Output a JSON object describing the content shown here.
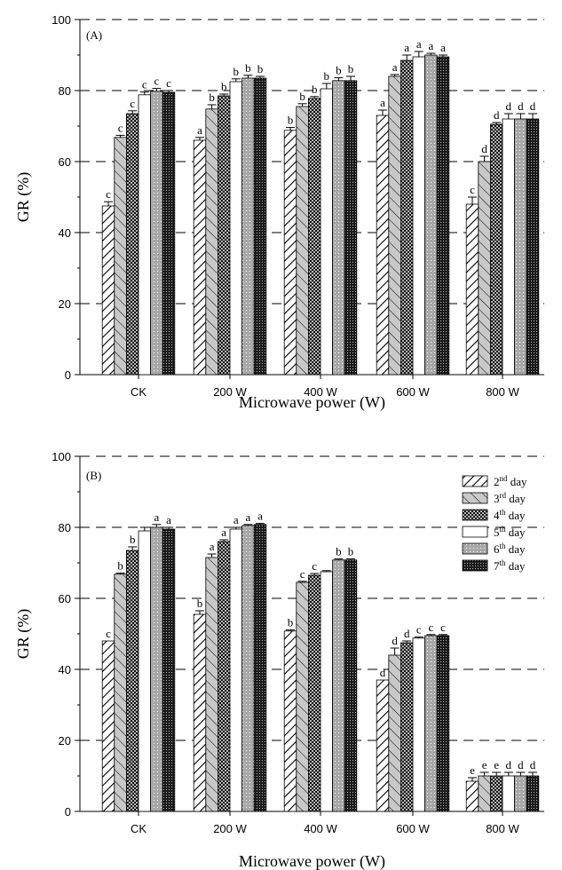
{
  "chart_data": [
    {
      "type": "bar",
      "panel_label": "(A)",
      "xlabel": "Microwave power (W)",
      "ylabel": "GR (%)",
      "ylim": [
        0,
        100
      ],
      "yticks": [
        0,
        20,
        40,
        60,
        80,
        100
      ],
      "grid": "dashed horizontal",
      "categories": [
        "CK",
        "200 W",
        "400 W",
        "600 W",
        "800 W"
      ],
      "series": [
        {
          "name": "2nd day",
          "values": [
            47.5,
            66.0,
            68.8,
            73.0,
            48.0
          ],
          "errors": [
            1.2,
            0.8,
            0.8,
            1.5,
            2.0
          ],
          "labels": [
            "c",
            "a",
            "b",
            "a",
            "c"
          ]
        },
        {
          "name": "3rd day",
          "values": [
            66.8,
            74.8,
            75.5,
            84.0,
            60.0
          ],
          "errors": [
            0.6,
            1.2,
            0.8,
            0.5,
            1.5
          ],
          "labels": [
            "c",
            "b",
            "b",
            "a",
            "d"
          ]
        },
        {
          "name": "4th day",
          "values": [
            73.5,
            78.5,
            77.8,
            88.5,
            70.5
          ],
          "errors": [
            0.8,
            0.5,
            0.5,
            1.5,
            0.5
          ],
          "labels": [
            "c",
            "b",
            "b",
            "a",
            "d"
          ]
        },
        {
          "name": "5th day",
          "values": [
            78.8,
            82.5,
            80.5,
            89.5,
            72.0
          ],
          "errors": [
            0.8,
            0.8,
            1.5,
            1.5,
            1.5
          ],
          "labels": [
            "c",
            "b",
            "b",
            "a",
            "d"
          ]
        },
        {
          "name": "6th day",
          "values": [
            79.8,
            83.5,
            82.8,
            90.0,
            72.0
          ],
          "errors": [
            0.8,
            0.8,
            0.8,
            0.5,
            1.5
          ],
          "labels": [
            "c",
            "b",
            "b",
            "a",
            "d"
          ]
        },
        {
          "name": "7th day",
          "values": [
            79.5,
            83.5,
            82.8,
            89.5,
            72.0
          ],
          "errors": [
            0.5,
            0.5,
            1.2,
            0.5,
            1.5
          ],
          "labels": [
            "c",
            "b",
            "b",
            "a",
            "d"
          ]
        }
      ]
    },
    {
      "type": "bar",
      "panel_label": "(B)",
      "xlabel": "Microwave power (W)",
      "ylabel": "GR (%)",
      "ylim": [
        0,
        100
      ],
      "yticks": [
        0,
        20,
        40,
        60,
        80,
        100
      ],
      "grid": "dashed horizontal",
      "legend_position": "top-right",
      "categories": [
        "CK",
        "200 W",
        "400 W",
        "600 W",
        "800 W"
      ],
      "series": [
        {
          "name": "2nd day",
          "values": [
            48.0,
            55.5,
            50.8,
            37.0,
            8.5
          ],
          "errors": [
            0.0,
            1.0,
            0.3,
            0.0,
            1.0
          ],
          "labels": [
            "c",
            "b",
            "b",
            "d",
            "e"
          ]
        },
        {
          "name": "3rd day",
          "values": [
            66.8,
            71.5,
            64.5,
            44.0,
            10.0
          ],
          "errors": [
            0.3,
            1.0,
            0.3,
            2.0,
            1.0
          ],
          "labels": [
            "b",
            "a",
            "c",
            "d",
            "e"
          ]
        },
        {
          "name": "4th day",
          "values": [
            73.5,
            76.0,
            66.5,
            47.5,
            10.0
          ],
          "errors": [
            1.0,
            0.5,
            0.5,
            0.5,
            1.0
          ],
          "labels": [
            "b",
            "a",
            "c",
            "d",
            "e"
          ]
        },
        {
          "name": "5th day",
          "values": [
            79.0,
            79.5,
            67.5,
            48.8,
            10.0
          ],
          "errors": [
            1.0,
            0.5,
            0.3,
            0.3,
            1.0
          ],
          "labels": [
            "",
            "a",
            "",
            "c",
            "d"
          ]
        },
        {
          "name": "6th day",
          "values": [
            80.0,
            80.5,
            70.8,
            49.5,
            10.0
          ],
          "errors": [
            0.8,
            0.3,
            0.3,
            0.3,
            1.0
          ],
          "labels": [
            "a",
            "a",
            "b",
            "c",
            "d"
          ]
        },
        {
          "name": "7th day",
          "values": [
            79.5,
            80.8,
            70.8,
            49.5,
            10.0
          ],
          "errors": [
            0.5,
            0.3,
            0.3,
            0.3,
            1.0
          ],
          "labels": [
            "a",
            "a",
            "b",
            "c",
            "d"
          ]
        }
      ]
    }
  ]
}
